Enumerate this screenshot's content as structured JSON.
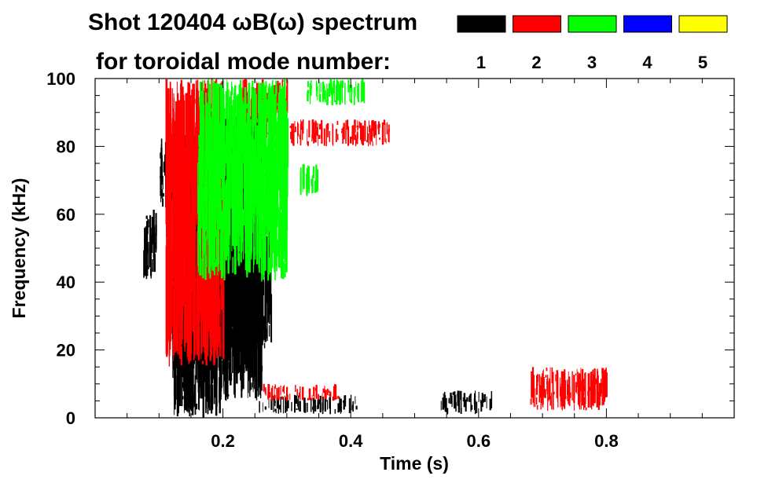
{
  "chart_data": {
    "type": "heatmap",
    "title_line1": "Shot 120404 ωB(ω) spectrum",
    "title_line2": "for toroidal mode number:",
    "xlabel": "Time (s)",
    "ylabel": "Frequency (kHz)",
    "xlim": [
      0.0,
      1.0
    ],
    "ylim": [
      0,
      100
    ],
    "x_ticks": [
      0.2,
      0.4,
      0.6,
      0.8
    ],
    "x_tick_labels": [
      "0.2",
      "0.4",
      "0.6",
      "0.8"
    ],
    "y_ticks": [
      0,
      20,
      40,
      60,
      80,
      100
    ],
    "y_tick_labels": [
      "0",
      "20",
      "40",
      "60",
      "80",
      "100"
    ],
    "legend": [
      {
        "label": "1",
        "color": "#000000"
      },
      {
        "label": "2",
        "color": "#ff0000"
      },
      {
        "label": "3",
        "color": "#00ff00"
      },
      {
        "label": "4",
        "color": "#0000ff"
      },
      {
        "label": "5",
        "color": "#ffff00"
      }
    ],
    "regions": [
      {
        "mode": 1,
        "t": [
          0.075,
          0.095
        ],
        "f": [
          40,
          62
        ]
      },
      {
        "mode": 1,
        "t": [
          0.1,
          0.18
        ],
        "f": [
          62,
          84
        ]
      },
      {
        "mode": 1,
        "t": [
          0.12,
          0.2
        ],
        "f": [
          0,
          84
        ]
      },
      {
        "mode": 1,
        "t": [
          0.2,
          0.26
        ],
        "f": [
          5,
          90
        ]
      },
      {
        "mode": 1,
        "t": [
          0.25,
          0.275
        ],
        "f": [
          20,
          60
        ]
      },
      {
        "mode": 1,
        "t": [
          0.25,
          0.41
        ],
        "f": [
          1,
          7
        ]
      },
      {
        "mode": 1,
        "t": [
          0.54,
          0.62
        ],
        "f": [
          1,
          8
        ]
      },
      {
        "mode": 2,
        "t": [
          0.11,
          0.2
        ],
        "f": [
          15,
          100
        ]
      },
      {
        "mode": 2,
        "t": [
          0.23,
          0.3
        ],
        "f": [
          80,
          100
        ]
      },
      {
        "mode": 2,
        "t": [
          0.3,
          0.46
        ],
        "f": [
          80,
          88
        ]
      },
      {
        "mode": 2,
        "t": [
          0.26,
          0.38
        ],
        "f": [
          5,
          10
        ]
      },
      {
        "mode": 2,
        "t": [
          0.68,
          0.8
        ],
        "f": [
          2,
          15
        ]
      },
      {
        "mode": 3,
        "t": [
          0.16,
          0.3
        ],
        "f": [
          40,
          100
        ]
      },
      {
        "mode": 3,
        "t": [
          0.33,
          0.42
        ],
        "f": [
          92,
          100
        ]
      },
      {
        "mode": 3,
        "t": [
          0.32,
          0.35
        ],
        "f": [
          65,
          75
        ]
      }
    ]
  }
}
